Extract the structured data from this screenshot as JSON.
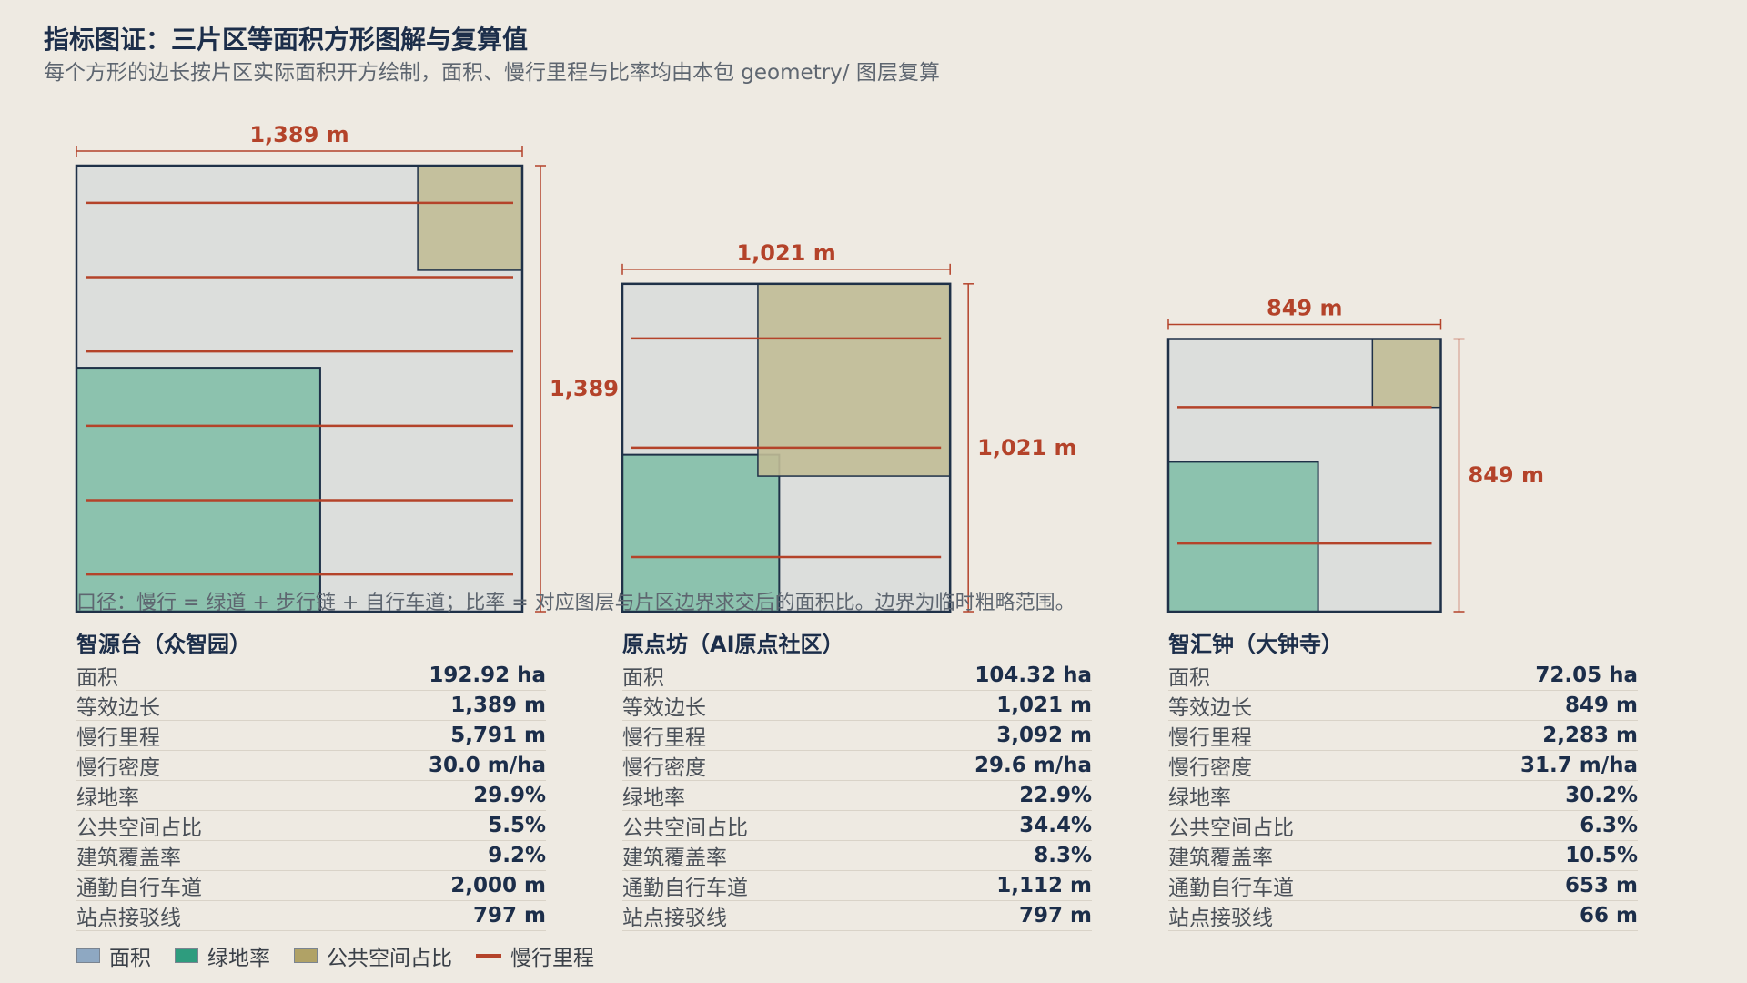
{
  "header": {
    "title": "指标图证：三片区等面积方形图解与复算值",
    "subtitle": "每个方形的边长按片区实际面积开方绘制，面积、慢行里程与比率均由本包 geometry/ 图层复算"
  },
  "colors": {
    "area_fill": "#DCDEDC",
    "area_stroke": "#1F3148",
    "green_fill": "#8CC2AE",
    "public_fill": "#C1BC96",
    "slow_line": "#B4432A",
    "legend_area": "#8EA8C2",
    "legend_green": "#2E9C7E",
    "legend_public": "#B0A266"
  },
  "note": "口径：慢行 = 绿道 + 步行链 + 自行车道；比率 = 对应图层与片区边界求交后的面积比。边界为临时粗略范围。",
  "chart_data": {
    "type": "proportional-squares",
    "districts": [
      {
        "name": "智源台（众智园）",
        "side_m": 1389,
        "side_label": "1,389 m",
        "area_ha": 192.92,
        "slow_km": 5.791,
        "green_ratio": 0.299,
        "public_ratio": 0.055,
        "stats": [
          {
            "label": "面积",
            "value": "192.92 ha"
          },
          {
            "label": "等效边长",
            "value": "1,389 m"
          },
          {
            "label": "慢行里程",
            "value": "5,791 m"
          },
          {
            "label": "慢行密度",
            "value": "30.0 m/ha"
          },
          {
            "label": "绿地率",
            "value": "29.9%"
          },
          {
            "label": "公共空间占比",
            "value": "5.5%"
          },
          {
            "label": "建筑覆盖率",
            "value": "9.2%"
          },
          {
            "label": "通勤自行车道",
            "value": "2,000 m"
          },
          {
            "label": "站点接驳线",
            "value": "797 m"
          }
        ]
      },
      {
        "name": "原点坊（AI原点社区）",
        "side_m": 1021,
        "side_label": "1,021 m",
        "area_ha": 104.32,
        "slow_km": 3.092,
        "green_ratio": 0.229,
        "public_ratio": 0.344,
        "stats": [
          {
            "label": "面积",
            "value": "104.32 ha"
          },
          {
            "label": "等效边长",
            "value": "1,021 m"
          },
          {
            "label": "慢行里程",
            "value": "3,092 m"
          },
          {
            "label": "慢行密度",
            "value": "29.6 m/ha"
          },
          {
            "label": "绿地率",
            "value": "22.9%"
          },
          {
            "label": "公共空间占比",
            "value": "34.4%"
          },
          {
            "label": "建筑覆盖率",
            "value": "8.3%"
          },
          {
            "label": "通勤自行车道",
            "value": "1,112 m"
          },
          {
            "label": "站点接驳线",
            "value": "797 m"
          }
        ]
      },
      {
        "name": "智汇钟（大钟寺）",
        "side_m": 849,
        "side_label": "849 m",
        "area_ha": 72.05,
        "slow_km": 2.283,
        "green_ratio": 0.302,
        "public_ratio": 0.063,
        "stats": [
          {
            "label": "面积",
            "value": "72.05 ha"
          },
          {
            "label": "等效边长",
            "value": "849 m"
          },
          {
            "label": "慢行里程",
            "value": "2,283 m"
          },
          {
            "label": "慢行密度",
            "value": "31.7 m/ha"
          },
          {
            "label": "绿地率",
            "value": "30.2%"
          },
          {
            "label": "公共空间占比",
            "value": "6.3%"
          },
          {
            "label": "建筑覆盖率",
            "value": "10.5%"
          },
          {
            "label": "通勤自行车道",
            "value": "653 m"
          },
          {
            "label": "站点接驳线",
            "value": "66 m"
          }
        ]
      }
    ]
  },
  "legend": [
    {
      "label": "面积",
      "kind": "swatch",
      "color": "#8EA8C2"
    },
    {
      "label": "绿地率",
      "kind": "swatch",
      "color": "#2E9C7E"
    },
    {
      "label": "公共空间占比",
      "kind": "swatch",
      "color": "#B0A266"
    },
    {
      "label": "慢行里程",
      "kind": "line",
      "color": "#B4432A"
    }
  ]
}
